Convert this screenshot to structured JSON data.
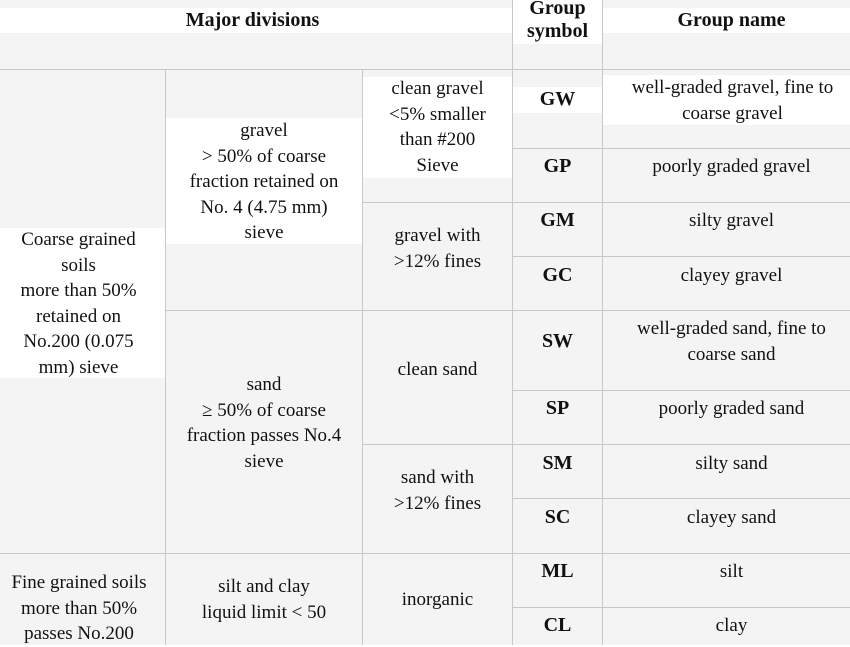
{
  "header": {
    "major_divisions": "Major divisions",
    "group_symbol_line1": "Group",
    "group_symbol_line2": "symbol",
    "group_name": "Group name"
  },
  "coarse": {
    "label": [
      "Coarse grained",
      "soils",
      "more than 50%",
      "retained on",
      "No.200 (0.075",
      "mm) sieve"
    ],
    "gravel": {
      "label": [
        "gravel",
        "> 50% of coarse",
        "fraction retained on",
        "No. 4 (4.75 mm)",
        "sieve"
      ],
      "clean": {
        "label": [
          "clean gravel",
          "<5% smaller",
          "than #200",
          "Sieve"
        ],
        "rows": [
          {
            "symbol": "GW",
            "name": [
              "well-graded gravel, fine to",
              "coarse gravel"
            ]
          },
          {
            "symbol": "GP",
            "name": [
              "poorly graded gravel"
            ]
          }
        ]
      },
      "fines": {
        "label": [
          "gravel with",
          ">12% fines"
        ],
        "rows": [
          {
            "symbol": "GM",
            "name": [
              "silty gravel"
            ]
          },
          {
            "symbol": "GC",
            "name": [
              "clayey gravel"
            ]
          }
        ]
      }
    },
    "sand": {
      "label": [
        "sand",
        "≥ 50% of coarse",
        "fraction passes No.4",
        "sieve"
      ],
      "clean": {
        "label": [
          "clean sand"
        ],
        "rows": [
          {
            "symbol": "SW",
            "name": [
              "well-graded sand, fine to",
              "coarse sand"
            ]
          },
          {
            "symbol": "SP",
            "name": [
              "poorly graded sand"
            ]
          }
        ]
      },
      "fines": {
        "label": [
          "sand with",
          ">12% fines"
        ],
        "rows": [
          {
            "symbol": "SM",
            "name": [
              "silty sand"
            ]
          },
          {
            "symbol": "SC",
            "name": [
              "clayey sand"
            ]
          }
        ]
      }
    }
  },
  "fine": {
    "label": [
      "Fine grained soils",
      "more than 50%",
      "passes No.200"
    ],
    "silt_clay": {
      "label": [
        "silt and clay",
        "liquid limit < 50"
      ],
      "inorganic": {
        "label": [
          "inorganic"
        ],
        "rows": [
          {
            "symbol": "ML",
            "name": [
              "silt"
            ]
          },
          {
            "symbol": "CL",
            "name": [
              "clay"
            ]
          }
        ]
      }
    }
  }
}
